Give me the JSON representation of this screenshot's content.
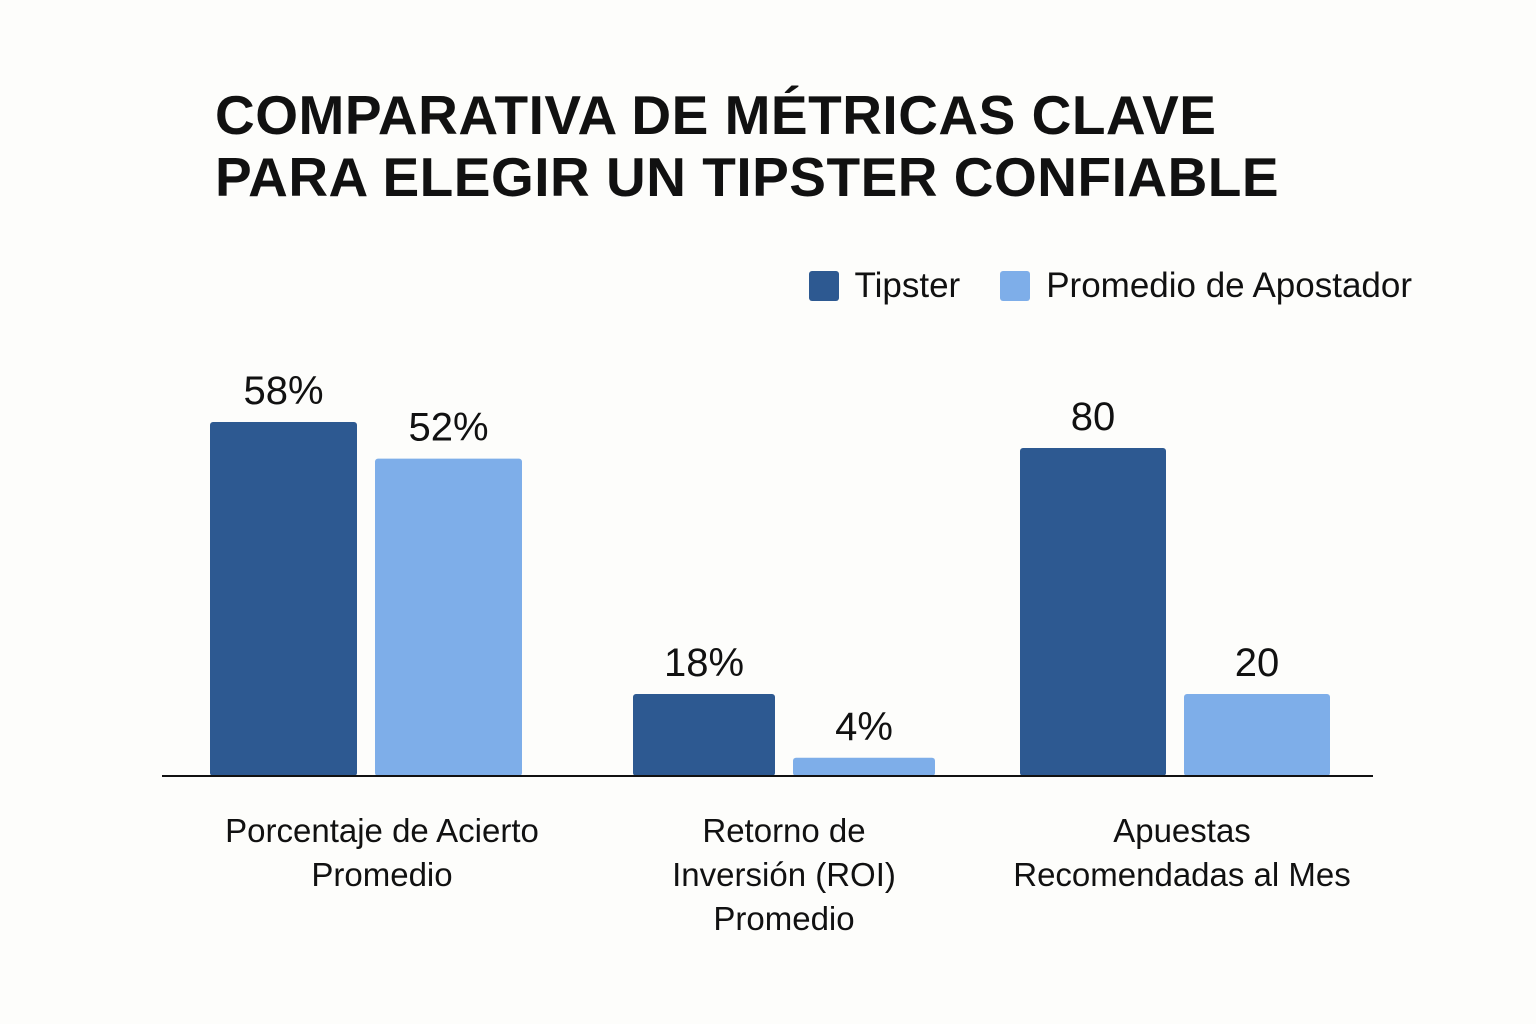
{
  "chart_data": {
    "type": "bar",
    "title_lines": [
      "COMPARATIVA DE MÉTRICAS CLAVE",
      "PARA ELEGIR UN TIPSTER CONFIABLE"
    ],
    "categories": [
      "Porcentaje de Acierto\nPromedio",
      "Retorno de\nInversión (ROI)\nPromedio",
      "Apuestas\nRecomendadas al Mes"
    ],
    "series": [
      {
        "name": "Tipster",
        "color": "#2d5991",
        "values": [
          58,
          18,
          80
        ],
        "value_labels": [
          "58%",
          "18%",
          "80"
        ]
      },
      {
        "name": "Promedio de Apostador",
        "color": "#7eaee9",
        "values": [
          52,
          4,
          20
        ],
        "value_labels": [
          "52%",
          "4%",
          "20"
        ]
      }
    ],
    "legend_position": "top-right",
    "grid": false
  }
}
